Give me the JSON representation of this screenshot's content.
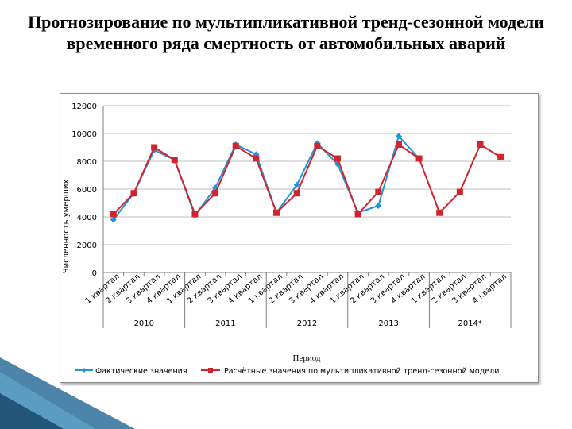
{
  "slide": {
    "title": "Прогнозирование по мультипликативной тренд-сезонной модели временного ряда смертность от автомобильных аварий"
  },
  "colors": {
    "actual": "#1f96d6",
    "fitted": "#d0252f",
    "grid": "#bfbfbf",
    "axis": "#808080",
    "deco": "#2e6f9a"
  },
  "chart_data": {
    "type": "line",
    "ylabel": "Численность умерших",
    "xlabel": "Период",
    "ylim": [
      0,
      12000
    ],
    "yticks": [
      0,
      2000,
      4000,
      6000,
      8000,
      10000,
      12000
    ],
    "grid": true,
    "legend_position": "bottom",
    "categories": [
      "1 квартал",
      "2 квартал",
      "3 квартал",
      "4 квартал",
      "1 квартал",
      "2 квартал",
      "3 квартал",
      "4 квартал",
      "1 квартал",
      "2 квартал",
      "3 квартал",
      "4 квартал",
      "1 квартал",
      "2 квартал",
      "3 квартал",
      "4 квартал",
      "1 квартал",
      "2 квартал",
      "3 квартал",
      "4 квартал"
    ],
    "groups": [
      {
        "label": "2010",
        "span": 4
      },
      {
        "label": "2011",
        "span": 4
      },
      {
        "label": "2012",
        "span": 4
      },
      {
        "label": "2013",
        "span": 4
      },
      {
        "label": "2014*",
        "span": 4
      }
    ],
    "series": [
      {
        "name": "Фактические значения",
        "values": [
          3800,
          5700,
          8800,
          8100,
          4100,
          6100,
          9200,
          8500,
          4300,
          6300,
          9300,
          7800,
          4300,
          4800,
          9800,
          8200,
          null,
          null,
          null,
          null
        ]
      },
      {
        "name": "Расчётные значения по мультипликативной тренд-сезонной модели",
        "values": [
          4200,
          5700,
          9000,
          8100,
          4200,
          5700,
          9100,
          8200,
          4300,
          5700,
          9100,
          8200,
          4200,
          5800,
          9200,
          8200,
          4300,
          5800,
          9200,
          8300
        ]
      }
    ]
  }
}
